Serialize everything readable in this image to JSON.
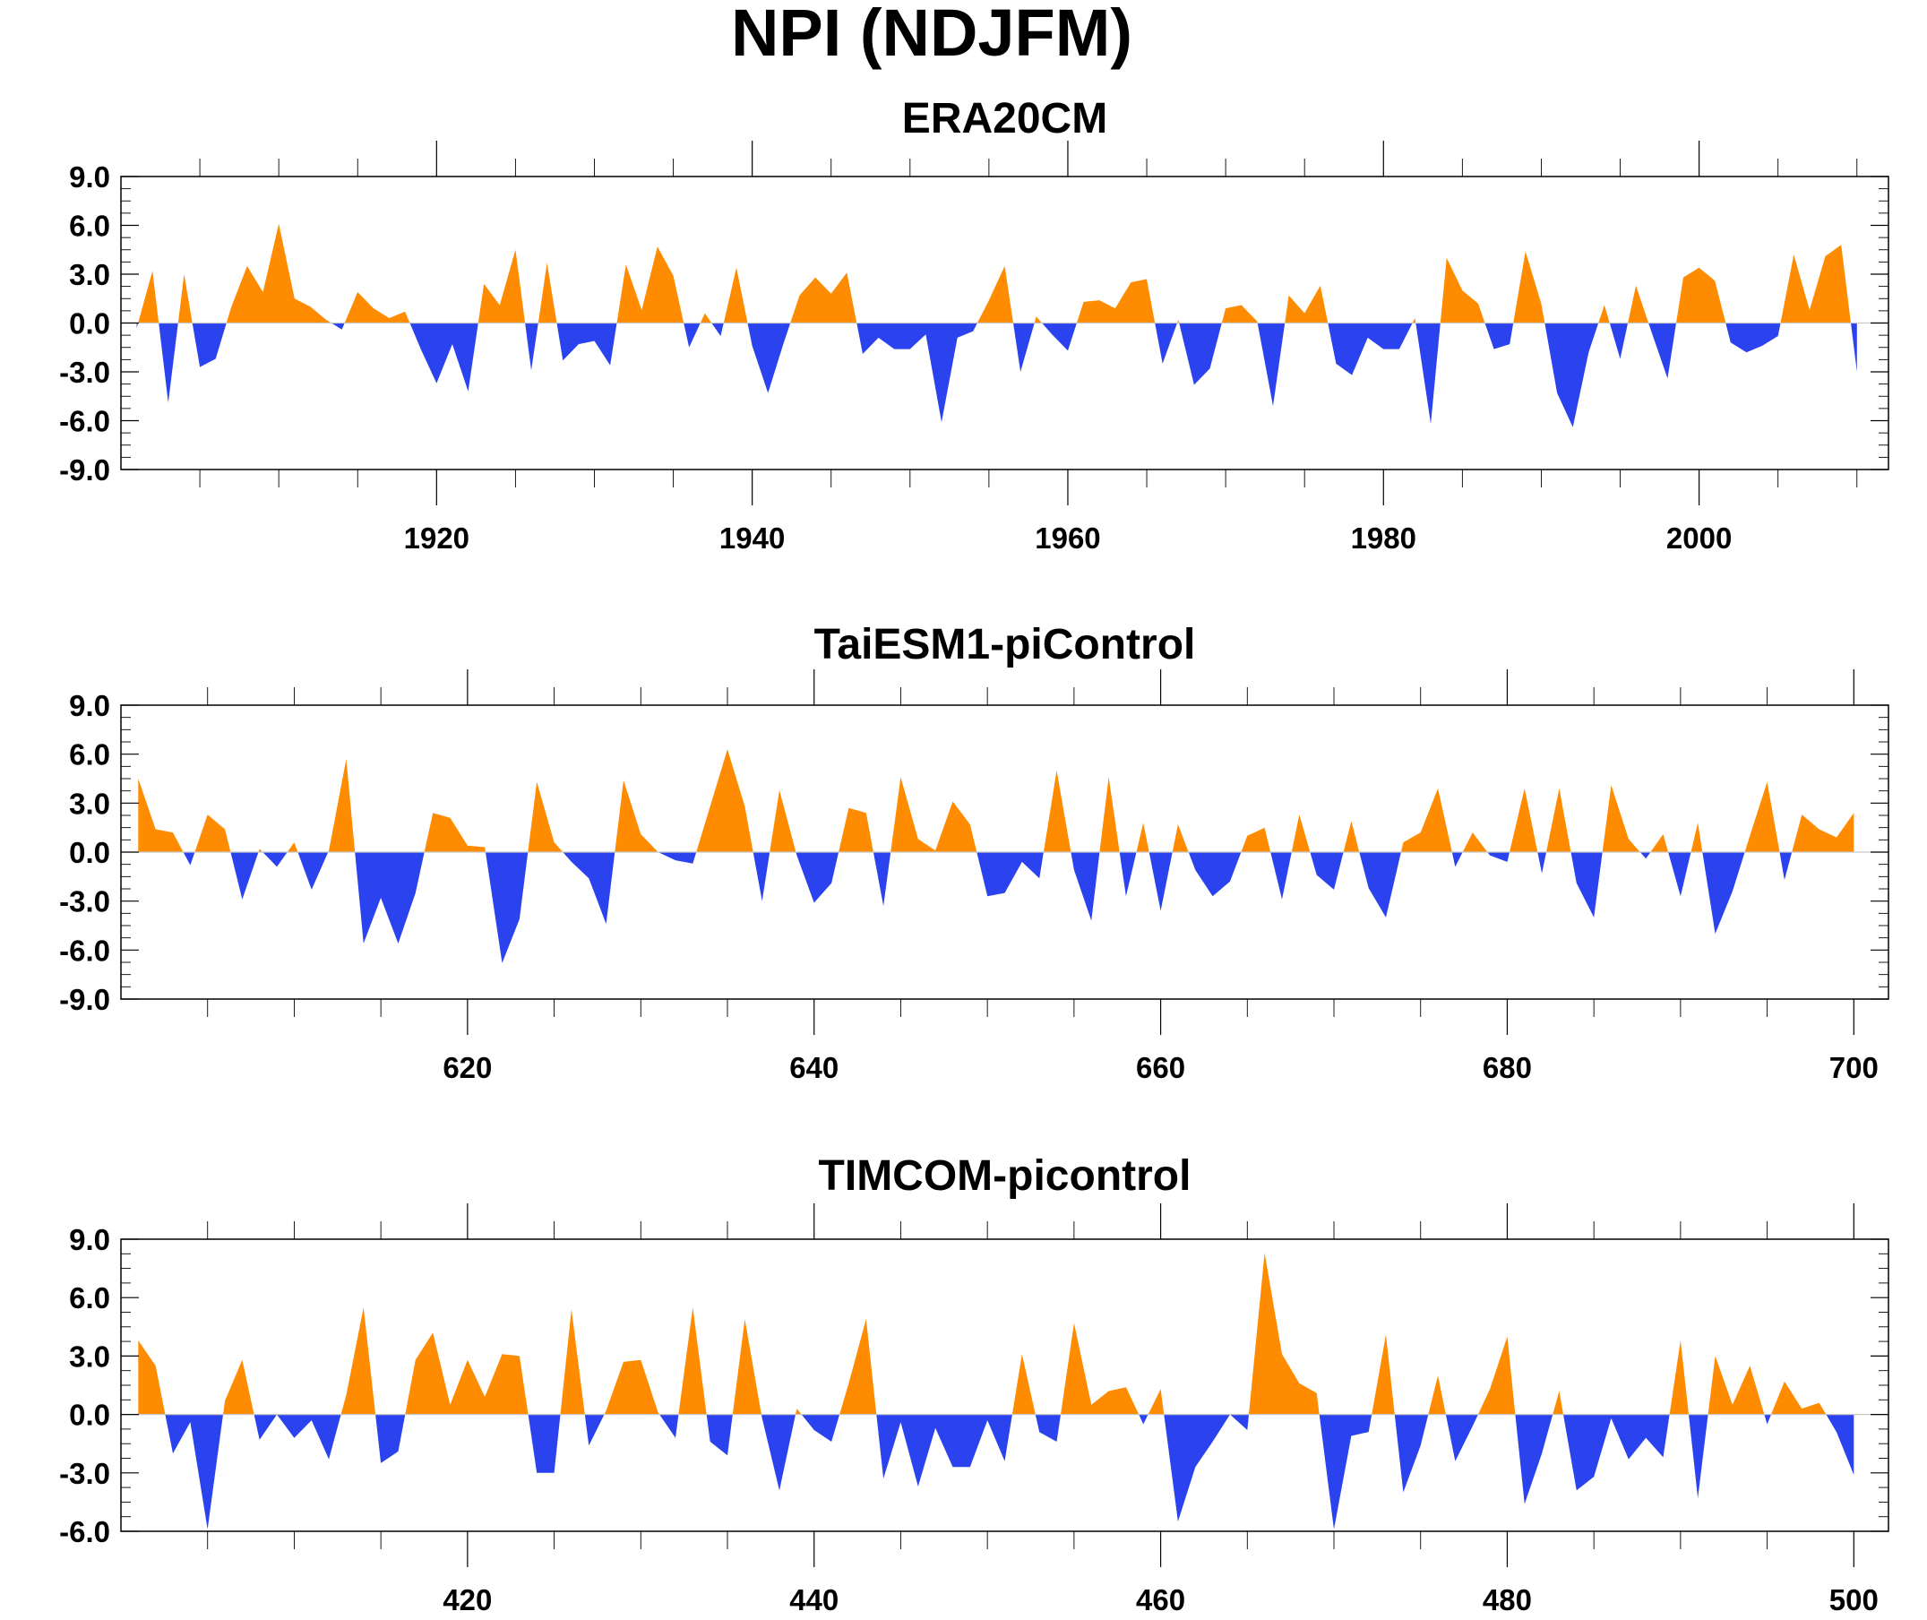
{
  "figure_title": "NPI (NDJFM)",
  "colors": {
    "positive": "#ff8c00",
    "negative": "#2a43ee"
  },
  "chart_data": [
    {
      "type": "area",
      "title": "ERA20CM",
      "xlabel": "",
      "ylabel": "",
      "x_start": 1901,
      "xlim": [
        1900,
        2012
      ],
      "ylim": [
        -9,
        9
      ],
      "yticks": [
        "9.0",
        "6.0",
        "3.0",
        "0.0",
        "-3.0",
        "-6.0",
        "-9.0"
      ],
      "ytick_values": [
        9,
        6,
        3,
        0,
        -3,
        -6,
        -9
      ],
      "xticks": [
        "1920",
        "1940",
        "1960",
        "1980",
        "2000"
      ],
      "xtick_values": [
        1920,
        1940,
        1960,
        1980,
        2000
      ],
      "values": [
        -0.3,
        3.2,
        -4.9,
        3.0,
        -2.7,
        -2.2,
        1.0,
        3.5,
        1.9,
        6.1,
        1.5,
        1.0,
        0.2,
        -0.4,
        1.9,
        0.9,
        0.3,
        0.7,
        -1.6,
        -3.7,
        -1.3,
        -4.2,
        2.4,
        1.1,
        4.5,
        -2.9,
        3.7,
        -2.3,
        -1.3,
        -1.1,
        -2.6,
        3.6,
        0.8,
        4.7,
        2.9,
        -1.5,
        0.6,
        -0.8,
        3.4,
        -1.4,
        -4.3,
        -1.2,
        1.7,
        2.8,
        1.8,
        3.1,
        -1.9,
        -0.9,
        -1.6,
        -1.6,
        -0.7,
        -6.1,
        -0.9,
        -0.5,
        1.4,
        3.5,
        -3.0,
        0.4,
        -0.7,
        -1.7,
        1.3,
        1.4,
        0.9,
        2.5,
        2.7,
        -2.5,
        0.2,
        -3.8,
        -2.8,
        0.9,
        1.1,
        0.1,
        -5.1,
        1.7,
        0.6,
        2.3,
        -2.5,
        -3.2,
        -0.9,
        -1.6,
        -1.6,
        0.3,
        -6.2,
        4.0,
        2.0,
        1.2,
        -1.6,
        -1.3,
        4.4,
        1.2,
        -4.3,
        -6.4,
        -1.8,
        1.1,
        -2.2,
        2.3,
        -0.6,
        -3.4,
        2.8,
        3.4,
        2.6,
        -1.2,
        -1.8,
        -1.4,
        -0.8,
        4.2,
        0.8,
        4.1,
        4.8,
        -3.0
      ]
    },
    {
      "type": "area",
      "title": "TaiESM1-piControl",
      "xlabel": "",
      "ylabel": "",
      "x_start": 601,
      "xlim": [
        600,
        702
      ],
      "ylim": [
        -9,
        9
      ],
      "yticks": [
        "9.0",
        "6.0",
        "3.0",
        "0.0",
        "-3.0",
        "-6.0",
        "-9.0"
      ],
      "ytick_values": [
        9,
        6,
        3,
        0,
        -3,
        -6,
        -9
      ],
      "xticks": [
        "620",
        "640",
        "660",
        "680",
        "700"
      ],
      "xtick_values": [
        620,
        640,
        660,
        680,
        700
      ],
      "values": [
        4.5,
        1.4,
        1.2,
        -0.8,
        2.3,
        1.4,
        -2.9,
        0.2,
        -0.9,
        0.6,
        -2.3,
        0.1,
        5.7,
        -5.6,
        -2.8,
        -5.6,
        -2.5,
        2.4,
        2.1,
        0.4,
        0.3,
        -6.8,
        -4.1,
        4.3,
        0.6,
        -0.6,
        -1.6,
        -4.4,
        4.4,
        1.1,
        0.0,
        -0.5,
        -0.7,
        2.8,
        6.3,
        2.8,
        -3.0,
        3.8,
        -0.2,
        -3.1,
        -1.9,
        2.7,
        2.4,
        -3.3,
        4.6,
        0.8,
        0.1,
        3.1,
        1.7,
        -2.7,
        -2.5,
        -0.6,
        -1.6,
        5.0,
        -1.1,
        -4.2,
        4.6,
        -2.7,
        1.8,
        -3.6,
        1.7,
        -1.1,
        -2.7,
        -1.8,
        1.0,
        1.5,
        -2.9,
        2.3,
        -1.4,
        -2.3,
        1.9,
        -2.2,
        -4.0,
        0.6,
        1.2,
        3.9,
        -0.9,
        1.2,
        -0.2,
        -0.6,
        3.9,
        -1.3,
        3.9,
        -1.9,
        -4.0,
        4.1,
        0.8,
        -0.4,
        1.1,
        -2.7,
        1.8,
        -5.0,
        -2.4,
        1.0,
        4.3,
        -1.7,
        2.3,
        1.4,
        0.9,
        2.4
      ]
    },
    {
      "type": "area",
      "title": "TIMCOM-picontrol",
      "xlabel": "",
      "ylabel": "",
      "x_start": 401,
      "xlim": [
        400,
        502
      ],
      "ylim": [
        -6,
        9
      ],
      "yticks": [
        "9.0",
        "6.0",
        "3.0",
        "0.0",
        "-3.0",
        "-6.0"
      ],
      "ytick_values": [
        9,
        6,
        3,
        0,
        -3,
        -6
      ],
      "xticks": [
        "420",
        "440",
        "460",
        "480",
        "500"
      ],
      "xtick_values": [
        420,
        440,
        460,
        480,
        500
      ],
      "values": [
        3.8,
        2.5,
        -2.0,
        -0.4,
        -5.9,
        0.7,
        2.8,
        -1.3,
        0.0,
        -1.2,
        -0.3,
        -2.3,
        1.0,
        5.5,
        -2.5,
        -1.9,
        2.8,
        4.2,
        0.5,
        2.8,
        0.9,
        3.1,
        3.0,
        -3.0,
        -3.0,
        5.4,
        -1.6,
        0.2,
        2.7,
        2.8,
        0.1,
        -1.2,
        5.5,
        -1.4,
        -2.1,
        4.9,
        -0.2,
        -3.9,
        0.3,
        -0.8,
        -1.4,
        1.6,
        4.9,
        -3.3,
        -0.4,
        -3.7,
        -0.7,
        -2.7,
        -2.7,
        -0.3,
        -2.4,
        3.1,
        -0.9,
        -1.4,
        4.7,
        0.5,
        1.2,
        1.4,
        -0.5,
        1.3,
        -5.5,
        -2.7,
        -1.4,
        0.0,
        -0.8,
        8.3,
        3.1,
        1.6,
        1.1,
        -5.9,
        -1.1,
        -0.9,
        4.1,
        -4.0,
        -1.6,
        2.0,
        -2.4,
        -0.6,
        1.3,
        4.0,
        -4.6,
        -2.0,
        1.2,
        -3.9,
        -3.2,
        -0.2,
        -2.3,
        -1.2,
        -2.2,
        3.8,
        -4.3,
        3.0,
        0.5,
        2.5,
        -0.5,
        1.7,
        0.3,
        0.6,
        -0.9,
        -3.1
      ]
    }
  ]
}
